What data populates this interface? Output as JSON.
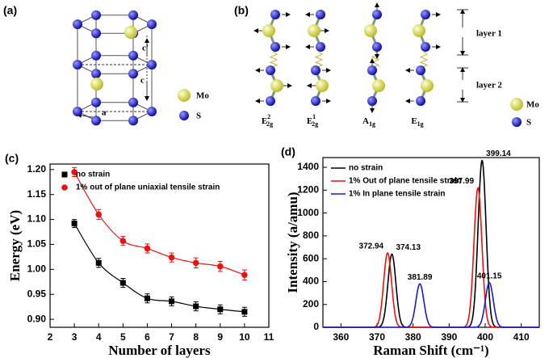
{
  "panel_a": {
    "label": "(a)",
    "lattice": {
      "a": "a",
      "c": "c",
      "c_prime": "c'"
    },
    "legend": [
      "Mo",
      "S"
    ]
  },
  "panel_b": {
    "label": "(b)",
    "layers": [
      "layer 1",
      "layer 2"
    ],
    "modes": [
      {
        "base": "E",
        "sub": "2g",
        "sup": "2"
      },
      {
        "base": "E",
        "sub": "2g",
        "sup": "1"
      },
      {
        "base": "A",
        "sub": "1g"
      },
      {
        "base": "E",
        "sub": "1g"
      }
    ],
    "legend": [
      "Mo",
      "S"
    ]
  },
  "chart_data": [
    {
      "type": "scatter",
      "panel_label": "(c)",
      "xlabel": "Number of layers",
      "ylabel": "Energy (eV)",
      "x": [
        3,
        4,
        5,
        6,
        7,
        8,
        9,
        10
      ],
      "series": [
        {
          "name": "no strain",
          "color": "#000000",
          "marker": "square",
          "values": [
            1.092,
            1.013,
            0.973,
            0.942,
            0.936,
            0.926,
            0.92,
            0.915
          ],
          "errors": [
            0.008,
            0.009,
            0.009,
            0.009,
            0.009,
            0.009,
            0.009,
            0.009
          ]
        },
        {
          "name": "1% out of plane uniaxial tensile strain",
          "color": "#ee1111",
          "marker": "circle",
          "values": [
            1.195,
            1.11,
            1.057,
            1.042,
            1.024,
            1.013,
            1.006,
            0.989
          ],
          "errors": [
            0.009,
            0.01,
            0.009,
            0.009,
            0.009,
            0.01,
            0.01,
            0.01
          ]
        }
      ],
      "fit_lines": true,
      "legend": "upper left",
      "xlim": [
        2,
        11
      ],
      "xticks": [
        2,
        3,
        4,
        5,
        6,
        7,
        8,
        9,
        10,
        11
      ],
      "ylim": [
        0.884,
        1.211
      ],
      "yticks": [
        {
          "value": 0.9,
          "label": "0.90"
        },
        0.95,
        {
          "value": 1.0,
          "label": "1.00"
        },
        1.05,
        {
          "value": 1.1,
          "label": "1.10"
        },
        1.15,
        {
          "value": 1.2,
          "label": "1.20"
        }
      ]
    },
    {
      "type": "spectrum",
      "panel_label": "(d)",
      "xlabel": "Raman Shift (cm⁻¹)",
      "ylabel": "Intensity (a/amu)",
      "series": [
        {
          "name": "no strain",
          "color": "#000000",
          "fwhm": 2.6,
          "peaks": [
            {
              "x": 374.13,
              "height": 640
            },
            {
              "x": 399.14,
              "height": 1460
            }
          ]
        },
        {
          "name": "1% Out of plane tensile strain",
          "color": "#ee1111",
          "fwhm": 2.6,
          "peaks": [
            {
              "x": 372.94,
              "height": 650
            },
            {
              "x": 397.99,
              "height": 1220
            }
          ]
        },
        {
          "name": "1%  In plane tensile strain",
          "color": "#1a1acc",
          "fwhm": 2.6,
          "peaks": [
            {
              "x": 381.89,
              "height": 380
            },
            {
              "x": 401.15,
              "height": 390
            }
          ]
        }
      ],
      "legend": "upper left",
      "xlim": [
        355,
        415
      ],
      "xticks": [
        360,
        370,
        380,
        390,
        400,
        410
      ],
      "ylim": [
        0,
        1485
      ],
      "yticks": [
        0,
        200,
        400,
        600,
        800,
        1000,
        1200,
        1400
      ]
    }
  ]
}
